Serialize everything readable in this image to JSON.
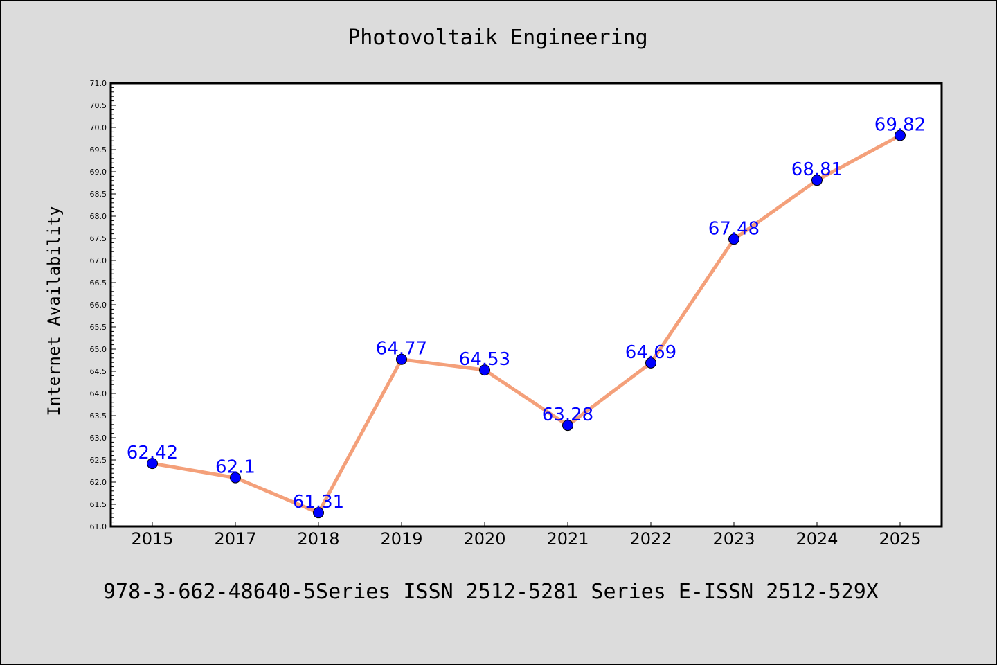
{
  "chart_data": {
    "type": "line",
    "title": "Photovoltaik Engineering",
    "xlabel": "",
    "ylabel": "Internet Availability",
    "categories": [
      "2015",
      "2017",
      "2018",
      "2019",
      "2020",
      "2021",
      "2022",
      "2023",
      "2024",
      "2025"
    ],
    "values": [
      62.42,
      62.1,
      61.31,
      64.77,
      64.53,
      63.28,
      64.69,
      67.48,
      68.81,
      69.82
    ],
    "data_labels": [
      "62.42",
      "62.1",
      "61.31",
      "64.77",
      "64.53",
      "63.28",
      "64.69",
      "67.48",
      "68.81",
      "69.82"
    ],
    "ylim": [
      61.0,
      71.0
    ],
    "yticks": [
      "61.0",
      "61.5",
      "62.0",
      "62.5",
      "63.0",
      "63.5",
      "64.0",
      "64.5",
      "65.0",
      "65.5",
      "66.0",
      "66.5",
      "67.0",
      "67.5",
      "68.0",
      "68.5",
      "69.0",
      "69.5",
      "70.0",
      "70.5",
      "71.0"
    ],
    "grid": false,
    "legend": "none",
    "line_color": "#f4a07a",
    "marker_color": "#0000ff",
    "label_color": "#0000ff",
    "plot_background": "#ffffff",
    "figure_background": "#dcdcdc"
  },
  "footer": {
    "text": "978-3-662-48640-5Series ISSN 2512-5281 Series E-ISSN 2512-529X"
  }
}
